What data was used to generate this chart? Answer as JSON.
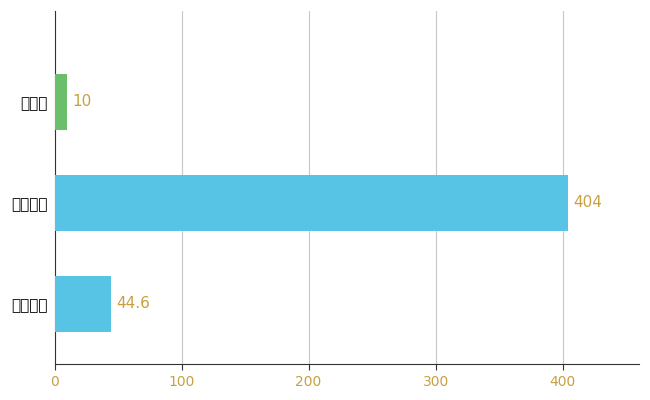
{
  "categories": [
    "全国平均",
    "全国最大",
    "石川県"
  ],
  "values": [
    44.6,
    404,
    10
  ],
  "bar_colors": [
    "#57C4E5",
    "#57C4E5",
    "#6BBF6A"
  ],
  "value_labels": [
    "44.6",
    "404",
    "10"
  ],
  "xlim": [
    0,
    460
  ],
  "xticks": [
    0,
    100,
    200,
    300,
    400
  ],
  "background_color": "#ffffff",
  "grid_color": "#c8c8c8",
  "label_fontsize": 11,
  "tick_fontsize": 10,
  "value_label_color": "#c8a040",
  "bar_height": 0.55
}
